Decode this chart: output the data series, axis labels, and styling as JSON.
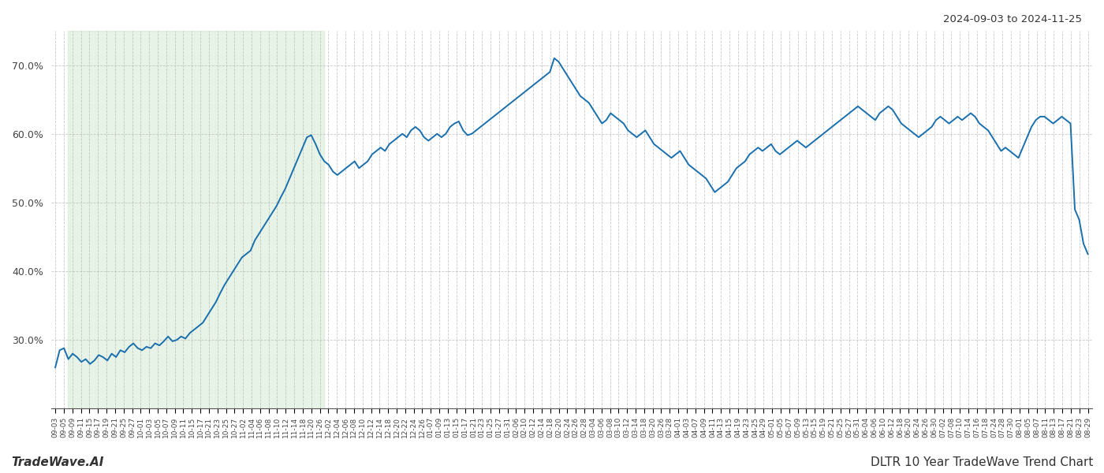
{
  "title_top_right": "2024-09-03 to 2024-11-25",
  "title_bottom_left": "TradeWave.AI",
  "title_bottom_right": "DLTR 10 Year TradeWave Trend Chart",
  "line_color": "#1a6fad",
  "shade_color": "#c8e6c9",
  "shade_alpha": 0.45,
  "background_color": "#ffffff",
  "grid_color": "#bbbbbb",
  "ylim": [
    20.0,
    75.0
  ],
  "yticks": [
    30.0,
    40.0,
    50.0,
    60.0,
    70.0
  ],
  "shade_start_label": "09-09",
  "shade_end_label": "11-26",
  "line_width": 1.4,
  "xtick_labels": [
    "09-03",
    "09-05",
    "09-09",
    "09-11",
    "09-15",
    "09-17",
    "09-19",
    "09-21",
    "09-25",
    "09-27",
    "10-01",
    "10-03",
    "10-05",
    "10-07",
    "10-09",
    "10-11",
    "10-15",
    "10-17",
    "10-21",
    "10-23",
    "10-25",
    "10-27",
    "11-02",
    "11-04",
    "11-06",
    "11-08",
    "11-10",
    "11-12",
    "11-14",
    "11-18",
    "11-20",
    "11-26",
    "12-02",
    "12-04",
    "12-06",
    "12-08",
    "12-10",
    "12-12",
    "12-14",
    "12-18",
    "12-20",
    "12-22",
    "12-24",
    "12-26",
    "01-07",
    "01-09",
    "01-13",
    "01-15",
    "01-17",
    "01-21",
    "01-23",
    "01-25",
    "01-27",
    "01-31",
    "02-06",
    "02-10",
    "02-12",
    "02-14",
    "02-18",
    "02-20",
    "02-24",
    "02-26",
    "02-28",
    "03-04",
    "03-06",
    "03-08",
    "03-10",
    "03-12",
    "03-14",
    "03-18",
    "03-20",
    "03-26",
    "03-28",
    "04-01",
    "04-03",
    "04-07",
    "04-09",
    "04-11",
    "04-13",
    "04-15",
    "04-19",
    "04-23",
    "04-25",
    "04-29",
    "05-01",
    "05-05",
    "05-07",
    "05-09",
    "05-13",
    "05-15",
    "05-19",
    "05-21",
    "05-25",
    "05-27",
    "05-31",
    "06-04",
    "06-06",
    "06-10",
    "06-12",
    "06-18",
    "06-20",
    "06-24",
    "06-26",
    "06-30",
    "07-02",
    "07-08",
    "07-10",
    "07-14",
    "07-16",
    "07-18",
    "07-24",
    "07-28",
    "07-30",
    "08-01",
    "08-05",
    "08-07",
    "08-11",
    "08-13",
    "08-17",
    "08-21",
    "08-23",
    "08-29"
  ],
  "values": [
    26.0,
    28.5,
    28.8,
    27.2,
    28.0,
    27.5,
    26.8,
    27.2,
    26.5,
    27.0,
    27.8,
    27.5,
    27.0,
    28.0,
    27.5,
    28.5,
    28.2,
    29.0,
    29.5,
    28.8,
    28.5,
    29.0,
    28.8,
    29.5,
    29.2,
    29.8,
    30.5,
    29.8,
    30.0,
    30.5,
    30.2,
    31.0,
    31.5,
    32.0,
    32.5,
    33.5,
    34.5,
    35.5,
    36.8,
    38.0,
    39.0,
    40.0,
    41.0,
    42.0,
    42.5,
    43.0,
    44.5,
    45.5,
    46.5,
    47.5,
    48.5,
    49.5,
    50.8,
    52.0,
    53.5,
    55.0,
    56.5,
    58.0,
    59.5,
    59.8,
    58.5,
    57.0,
    56.0,
    55.5,
    54.5,
    54.0,
    54.5,
    55.0,
    55.5,
    56.0,
    55.0,
    55.5,
    56.0,
    57.0,
    57.5,
    58.0,
    57.5,
    58.5,
    59.0,
    59.5,
    60.0,
    59.5,
    60.5,
    61.0,
    60.5,
    59.5,
    59.0,
    59.5,
    60.0,
    59.5,
    60.0,
    61.0,
    61.5,
    61.8,
    60.5,
    59.8,
    60.0,
    60.5,
    61.0,
    61.5,
    62.0,
    62.5,
    63.0,
    63.5,
    64.0,
    64.5,
    65.0,
    65.5,
    66.0,
    66.5,
    67.0,
    67.5,
    68.0,
    68.5,
    69.0,
    71.0,
    70.5,
    69.5,
    68.5,
    67.5,
    66.5,
    65.5,
    65.0,
    64.5,
    63.5,
    62.5,
    61.5,
    62.0,
    63.0,
    62.5,
    62.0,
    61.5,
    60.5,
    60.0,
    59.5,
    60.0,
    60.5,
    59.5,
    58.5,
    58.0,
    57.5,
    57.0,
    56.5,
    57.0,
    57.5,
    56.5,
    55.5,
    55.0,
    54.5,
    54.0,
    53.5,
    52.5,
    51.5,
    52.0,
    52.5,
    53.0,
    54.0,
    55.0,
    55.5,
    56.0,
    57.0,
    57.5,
    58.0,
    57.5,
    58.0,
    58.5,
    57.5,
    57.0,
    57.5,
    58.0,
    58.5,
    59.0,
    58.5,
    58.0,
    58.5,
    59.0,
    59.5,
    60.0,
    60.5,
    61.0,
    61.5,
    62.0,
    62.5,
    63.0,
    63.5,
    64.0,
    63.5,
    63.0,
    62.5,
    62.0,
    63.0,
    63.5,
    64.0,
    63.5,
    62.5,
    61.5,
    61.0,
    60.5,
    60.0,
    59.5,
    60.0,
    60.5,
    61.0,
    62.0,
    62.5,
    62.0,
    61.5,
    62.0,
    62.5,
    62.0,
    62.5,
    63.0,
    62.5,
    61.5,
    61.0,
    60.5,
    59.5,
    58.5,
    57.5,
    58.0,
    57.5,
    57.0,
    56.5,
    58.0,
    59.5,
    61.0,
    62.0,
    62.5,
    62.5,
    62.0,
    61.5,
    62.0,
    62.5,
    62.0,
    61.5,
    49.0,
    47.5,
    44.0,
    42.5
  ]
}
